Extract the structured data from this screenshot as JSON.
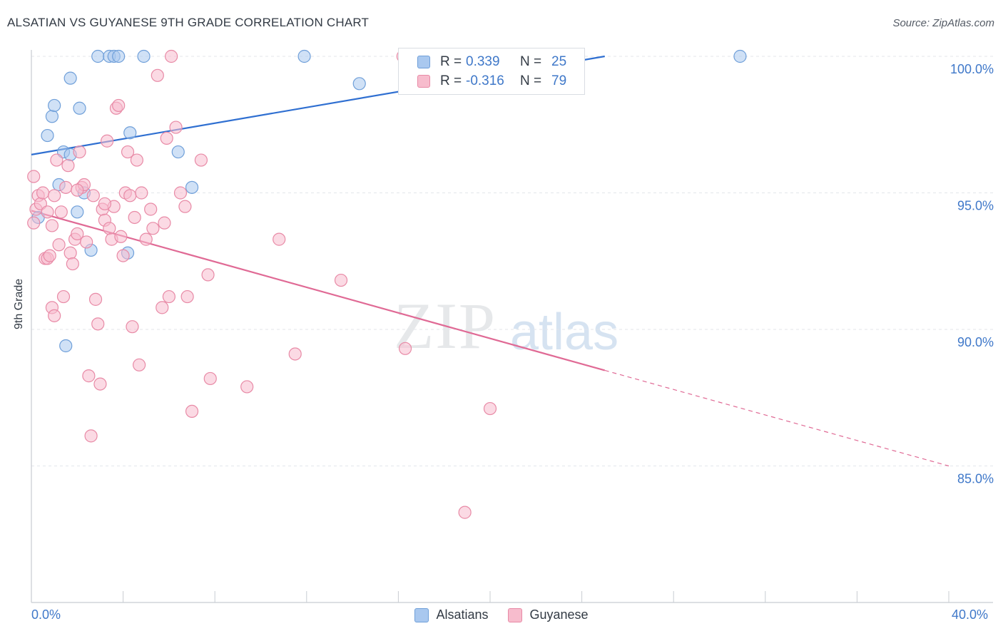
{
  "header": {
    "title": "ALSATIAN VS GUYANESE 9TH GRADE CORRELATION CHART",
    "source": "Source: ZipAtlas.com"
  },
  "watermark": {
    "zip": "ZIP",
    "atlas": "atlas"
  },
  "legend": {
    "rows": [
      {
        "r_label": "R =",
        "r_value": "0.339",
        "n_label": "N =",
        "n_value": "25",
        "color": "#a9c8ef",
        "stroke": "#6f9fd9"
      },
      {
        "r_label": "R =",
        "r_value": "-0.316",
        "n_label": "N =",
        "n_value": "79",
        "color": "#f7bccd",
        "stroke": "#e88aa6"
      }
    ]
  },
  "bottom_legend": [
    {
      "label": "Alsatians",
      "color": "#a9c8ef",
      "stroke": "#6f9fd9"
    },
    {
      "label": "Guyanese",
      "color": "#f7bccd",
      "stroke": "#e88aa6"
    }
  ],
  "axes": {
    "ylabel": "9th Grade",
    "x_left_label": "0.0%",
    "x_right_label": "40.0%",
    "y_tick_labels": [
      "100.0%",
      "95.0%",
      "90.0%",
      "85.0%"
    ]
  },
  "chart_data": {
    "type": "scatter",
    "title": "ALSATIAN VS GUYANESE 9TH GRADE CORRELATION CHART",
    "xlabel": "",
    "ylabel": "9th Grade",
    "xlim": [
      0,
      40
    ],
    "ylim": [
      80.5,
      100.5
    ],
    "y_ticks": [
      100,
      95,
      90,
      85
    ],
    "grid": true,
    "legend_position": "top-center",
    "series": [
      {
        "name": "Alsatians",
        "color": "#6f9fd9",
        "fill": "#a9c8ef",
        "r": 0.339,
        "n": 25,
        "trend": {
          "x": [
            0,
            25
          ],
          "y": [
            96.4,
            100.0
          ],
          "dashed_from": null
        },
        "points": [
          [
            0.7,
            97.1
          ],
          [
            0.9,
            97.8
          ],
          [
            1.0,
            98.2
          ],
          [
            0.3,
            94.1
          ],
          [
            1.2,
            95.3
          ],
          [
            1.4,
            96.5
          ],
          [
            1.5,
            89.4
          ],
          [
            1.7,
            99.2
          ],
          [
            1.7,
            96.4
          ],
          [
            2.0,
            94.3
          ],
          [
            2.1,
            98.1
          ],
          [
            2.3,
            95.0
          ],
          [
            2.6,
            92.9
          ],
          [
            2.9,
            100.0
          ],
          [
            3.4,
            100.0
          ],
          [
            3.6,
            100.0
          ],
          [
            3.8,
            100.0
          ],
          [
            4.2,
            92.8
          ],
          [
            4.3,
            97.2
          ],
          [
            4.9,
            100.0
          ],
          [
            6.4,
            96.5
          ],
          [
            7.0,
            95.2
          ],
          [
            11.9,
            100.0
          ],
          [
            14.3,
            99.0
          ],
          [
            30.9,
            100.0
          ]
        ]
      },
      {
        "name": "Guyanese",
        "color": "#e88aa6",
        "fill": "#f7bccd",
        "r": -0.316,
        "n": 79,
        "trend": {
          "x": [
            0,
            25,
            40
          ],
          "y": [
            94.35,
            88.5,
            85.0
          ],
          "dashed_from": 25
        },
        "points": [
          [
            0.1,
            93.9
          ],
          [
            0.1,
            95.6
          ],
          [
            0.2,
            94.4
          ],
          [
            0.3,
            94.9
          ],
          [
            0.4,
            94.6
          ],
          [
            0.5,
            95.0
          ],
          [
            0.6,
            92.6
          ],
          [
            0.7,
            94.3
          ],
          [
            0.7,
            92.6
          ],
          [
            0.8,
            92.7
          ],
          [
            0.9,
            93.8
          ],
          [
            0.9,
            90.8
          ],
          [
            1.0,
            90.5
          ],
          [
            1.1,
            96.2
          ],
          [
            1.2,
            93.1
          ],
          [
            1.3,
            94.3
          ],
          [
            1.4,
            91.2
          ],
          [
            1.5,
            95.2
          ],
          [
            1.6,
            96.0
          ],
          [
            1.7,
            92.8
          ],
          [
            1.8,
            92.4
          ],
          [
            1.9,
            93.3
          ],
          [
            2.0,
            93.5
          ],
          [
            2.1,
            96.5
          ],
          [
            2.2,
            95.2
          ],
          [
            2.3,
            95.3
          ],
          [
            2.4,
            93.2
          ],
          [
            2.5,
            88.3
          ],
          [
            2.6,
            86.1
          ],
          [
            2.7,
            94.9
          ],
          [
            2.8,
            91.1
          ],
          [
            2.9,
            90.2
          ],
          [
            3.0,
            88.0
          ],
          [
            3.1,
            94.4
          ],
          [
            3.2,
            94.0
          ],
          [
            3.3,
            96.9
          ],
          [
            3.4,
            93.7
          ],
          [
            3.5,
            93.3
          ],
          [
            3.6,
            94.5
          ],
          [
            3.7,
            98.1
          ],
          [
            3.8,
            98.2
          ],
          [
            3.9,
            93.4
          ],
          [
            4.0,
            92.7
          ],
          [
            4.1,
            95.0
          ],
          [
            4.2,
            96.5
          ],
          [
            4.3,
            94.9
          ],
          [
            4.4,
            90.1
          ],
          [
            4.5,
            94.1
          ],
          [
            4.6,
            96.2
          ],
          [
            4.7,
            88.7
          ],
          [
            4.8,
            95.0
          ],
          [
            5.0,
            93.3
          ],
          [
            5.2,
            94.4
          ],
          [
            5.3,
            93.7
          ],
          [
            5.5,
            99.3
          ],
          [
            5.7,
            90.8
          ],
          [
            5.8,
            93.9
          ],
          [
            5.9,
            97.0
          ],
          [
            6.0,
            91.2
          ],
          [
            6.1,
            100.0
          ],
          [
            6.3,
            97.4
          ],
          [
            6.5,
            95.0
          ],
          [
            6.7,
            94.5
          ],
          [
            6.8,
            91.2
          ],
          [
            7.0,
            87.0
          ],
          [
            7.4,
            96.2
          ],
          [
            7.7,
            92.0
          ],
          [
            7.8,
            88.2
          ],
          [
            9.4,
            87.9
          ],
          [
            10.8,
            93.3
          ],
          [
            11.5,
            89.1
          ],
          [
            13.5,
            91.8
          ],
          [
            16.2,
            100.0
          ],
          [
            16.3,
            89.3
          ],
          [
            18.9,
            83.3
          ],
          [
            20.0,
            87.1
          ],
          [
            1.0,
            94.9
          ],
          [
            2.0,
            95.1
          ],
          [
            3.2,
            94.6
          ]
        ]
      }
    ]
  }
}
